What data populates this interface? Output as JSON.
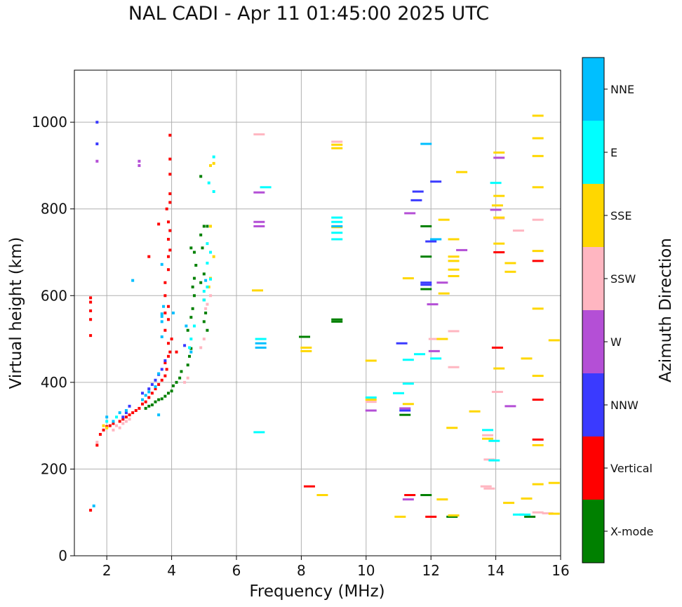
{
  "chart_data": {
    "type": "scatter",
    "title": "NAL CADI - Apr 11 01:45:00 2025 UTC",
    "xlabel": "Frequency (MHz)",
    "ylabel": "Virtual height (km)",
    "xlim": [
      1,
      16
    ],
    "ylim": [
      0,
      1120
    ],
    "xticks": [
      2,
      4,
      6,
      8,
      10,
      12,
      14,
      16
    ],
    "yticks": [
      0,
      200,
      400,
      600,
      800,
      1000
    ],
    "grid": true,
    "colorbar": {
      "label": "Azimuth Direction",
      "categories": [
        {
          "name": "X-mode",
          "color": "#008000"
        },
        {
          "name": "Vertical",
          "color": "#ff0000"
        },
        {
          "name": "NNW",
          "color": "#3a3aff"
        },
        {
          "name": "W",
          "color": "#b44fd6"
        },
        {
          "name": "SSW",
          "color": "#ffb6c1"
        },
        {
          "name": "SSE",
          "color": "#ffd700"
        },
        {
          "name": "E",
          "color": "#00ffff"
        },
        {
          "name": "NNE",
          "color": "#00bfff"
        }
      ]
    },
    "series": [
      {
        "name": "X-mode",
        "points": [
          [
            3.5,
            355
          ],
          [
            3.6,
            360
          ],
          [
            3.7,
            362
          ],
          [
            3.8,
            368
          ],
          [
            3.9,
            375
          ],
          [
            4.0,
            380
          ],
          [
            4.05,
            392
          ],
          [
            4.15,
            400
          ],
          [
            4.25,
            410
          ],
          [
            4.3,
            425
          ],
          [
            4.5,
            440
          ],
          [
            4.55,
            460
          ],
          [
            4.6,
            478
          ],
          [
            4.5,
            520
          ],
          [
            4.6,
            550
          ],
          [
            4.65,
            570
          ],
          [
            4.7,
            600
          ],
          [
            4.65,
            620
          ],
          [
            4.7,
            640
          ],
          [
            4.75,
            670
          ],
          [
            4.7,
            700
          ],
          [
            4.6,
            710
          ],
          [
            4.9,
            740
          ],
          [
            5.0,
            760
          ],
          [
            5.1,
            760
          ],
          [
            4.95,
            710
          ],
          [
            5.0,
            650
          ],
          [
            4.9,
            630
          ],
          [
            5.0,
            590
          ],
          [
            5.05,
            560
          ],
          [
            5.0,
            540
          ],
          [
            5.1,
            520
          ],
          [
            3.3,
            345
          ],
          [
            3.4,
            348
          ],
          [
            3.2,
            340
          ],
          [
            4.9,
            875
          ],
          [
            8.1,
            505
          ],
          [
            9.1,
            540
          ],
          [
            9.1,
            545
          ],
          [
            11.2,
            325
          ],
          [
            11.85,
            140
          ],
          [
            11.85,
            615
          ],
          [
            11.85,
            690
          ],
          [
            11.85,
            760
          ],
          [
            12.65,
            90
          ],
          [
            15.05,
            90
          ]
        ]
      },
      {
        "name": "Vertical",
        "points": [
          [
            1.5,
            105
          ],
          [
            1.5,
            508
          ],
          [
            1.5,
            545
          ],
          [
            1.5,
            565
          ],
          [
            1.5,
            585
          ],
          [
            1.5,
            595
          ],
          [
            1.7,
            255
          ],
          [
            1.8,
            280
          ],
          [
            1.9,
            290
          ],
          [
            2.0,
            298
          ],
          [
            2.1,
            300
          ],
          [
            2.2,
            305
          ],
          [
            2.4,
            310
          ],
          [
            2.5,
            315
          ],
          [
            2.6,
            320
          ],
          [
            2.7,
            325
          ],
          [
            2.8,
            330
          ],
          [
            2.9,
            335
          ],
          [
            3.0,
            340
          ],
          [
            3.1,
            350
          ],
          [
            3.2,
            355
          ],
          [
            3.3,
            365
          ],
          [
            3.4,
            375
          ],
          [
            3.5,
            385
          ],
          [
            3.6,
            395
          ],
          [
            3.7,
            405
          ],
          [
            3.8,
            415
          ],
          [
            3.85,
            430
          ],
          [
            3.8,
            445
          ],
          [
            3.9,
            460
          ],
          [
            3.95,
            470
          ],
          [
            3.9,
            490
          ],
          [
            4.0,
            500
          ],
          [
            3.8,
            520
          ],
          [
            3.9,
            545
          ],
          [
            3.8,
            560
          ],
          [
            3.9,
            575
          ],
          [
            3.8,
            600
          ],
          [
            3.8,
            630
          ],
          [
            3.9,
            660
          ],
          [
            3.9,
            690
          ],
          [
            3.95,
            705
          ],
          [
            3.9,
            730
          ],
          [
            3.95,
            750
          ],
          [
            3.9,
            770
          ],
          [
            3.85,
            800
          ],
          [
            3.95,
            815
          ],
          [
            3.95,
            835
          ],
          [
            3.95,
            880
          ],
          [
            3.95,
            915
          ],
          [
            3.95,
            970
          ],
          [
            3.6,
            765
          ],
          [
            3.3,
            690
          ],
          [
            4.15,
            470
          ],
          [
            8.25,
            160
          ],
          [
            11.35,
            140
          ],
          [
            12.0,
            90
          ],
          [
            14.05,
            480
          ],
          [
            14.1,
            700
          ],
          [
            15.3,
            680
          ],
          [
            15.3,
            360
          ],
          [
            15.3,
            268
          ]
        ]
      },
      {
        "name": "NNW",
        "points": [
          [
            1.7,
            950
          ],
          [
            1.7,
            1000
          ],
          [
            2.5,
            320
          ],
          [
            2.6,
            330
          ],
          [
            2.7,
            345
          ],
          [
            3.1,
            375
          ],
          [
            3.3,
            385
          ],
          [
            3.4,
            395
          ],
          [
            3.5,
            405
          ],
          [
            3.6,
            418
          ],
          [
            3.7,
            430
          ],
          [
            3.8,
            450
          ],
          [
            4.4,
            485
          ],
          [
            11.1,
            490
          ],
          [
            11.2,
            335
          ],
          [
            11.55,
            820
          ],
          [
            11.6,
            840
          ],
          [
            11.85,
            625
          ],
          [
            11.85,
            630
          ],
          [
            12.0,
            725
          ],
          [
            12.15,
            863
          ]
        ]
      },
      {
        "name": "W",
        "points": [
          [
            1.7,
            910
          ],
          [
            3.0,
            910
          ],
          [
            3.0,
            900
          ],
          [
            6.7,
            838
          ],
          [
            6.7,
            760
          ],
          [
            6.7,
            770
          ],
          [
            10.15,
            335
          ],
          [
            11.2,
            340
          ],
          [
            11.3,
            130
          ],
          [
            11.35,
            790
          ],
          [
            12.05,
            580
          ],
          [
            12.1,
            472
          ],
          [
            12.35,
            630
          ],
          [
            12.95,
            705
          ],
          [
            14.0,
            798
          ],
          [
            14.1,
            918
          ],
          [
            14.45,
            345
          ]
        ]
      },
      {
        "name": "SSW",
        "points": [
          [
            1.7,
            262
          ],
          [
            2.2,
            290
          ],
          [
            2.3,
            300
          ],
          [
            2.4,
            295
          ],
          [
            2.5,
            305
          ],
          [
            2.6,
            310
          ],
          [
            2.7,
            315
          ],
          [
            4.4,
            400
          ],
          [
            4.5,
            410
          ],
          [
            4.9,
            480
          ],
          [
            5.0,
            500
          ],
          [
            5.05,
            570
          ],
          [
            5.1,
            580
          ],
          [
            5.2,
            600
          ],
          [
            6.7,
            972
          ],
          [
            9.1,
            955
          ],
          [
            10.15,
            355
          ],
          [
            12.1,
            500
          ],
          [
            12.7,
            518
          ],
          [
            12.7,
            435
          ],
          [
            13.7,
            160
          ],
          [
            13.8,
            155
          ],
          [
            13.75,
            278
          ],
          [
            13.8,
            222
          ],
          [
            14.05,
            378
          ],
          [
            14.1,
            778
          ],
          [
            14.7,
            750
          ],
          [
            15.3,
            775
          ],
          [
            15.3,
            100
          ],
          [
            15.6,
            98
          ]
        ]
      },
      {
        "name": "SSE",
        "points": [
          [
            1.9,
            300
          ],
          [
            2.0,
            295
          ],
          [
            5.2,
            900
          ],
          [
            5.3,
            905
          ],
          [
            5.2,
            760
          ],
          [
            5.3,
            690
          ],
          [
            5.2,
            640
          ],
          [
            5.15,
            620
          ],
          [
            6.65,
            612
          ],
          [
            8.15,
            472
          ],
          [
            8.15,
            480
          ],
          [
            8.65,
            140
          ],
          [
            9.1,
            948
          ],
          [
            9.1,
            940
          ],
          [
            9.1,
            758
          ],
          [
            10.15,
            450
          ],
          [
            10.15,
            360
          ],
          [
            11.05,
            90
          ],
          [
            11.3,
            350
          ],
          [
            11.3,
            640
          ],
          [
            12.35,
            130
          ],
          [
            12.35,
            500
          ],
          [
            12.4,
            605
          ],
          [
            12.4,
            775
          ],
          [
            12.65,
            295
          ],
          [
            12.7,
            93
          ],
          [
            12.7,
            645
          ],
          [
            12.7,
            660
          ],
          [
            12.7,
            680
          ],
          [
            12.7,
            690
          ],
          [
            12.7,
            730
          ],
          [
            12.95,
            885
          ],
          [
            13.35,
            333
          ],
          [
            13.75,
            270
          ],
          [
            14.1,
            930
          ],
          [
            14.1,
            830
          ],
          [
            14.05,
            808
          ],
          [
            14.1,
            780
          ],
          [
            14.1,
            720
          ],
          [
            14.1,
            432
          ],
          [
            14.45,
            655
          ],
          [
            14.45,
            675
          ],
          [
            14.4,
            122
          ],
          [
            14.95,
            132
          ],
          [
            14.95,
            455
          ],
          [
            15.3,
            1015
          ],
          [
            15.3,
            963
          ],
          [
            15.3,
            922
          ],
          [
            15.3,
            850
          ],
          [
            15.3,
            703
          ],
          [
            15.3,
            570
          ],
          [
            15.3,
            415
          ],
          [
            15.3,
            255
          ],
          [
            15.3,
            165
          ],
          [
            15.8,
            168
          ],
          [
            15.8,
            497
          ],
          [
            15.8,
            97
          ]
        ]
      },
      {
        "name": "E",
        "points": [
          [
            2.0,
            310
          ],
          [
            2.3,
            320
          ],
          [
            4.55,
            480
          ],
          [
            4.6,
            500
          ],
          [
            4.7,
            530
          ],
          [
            5.0,
            590
          ],
          [
            5.0,
            610
          ],
          [
            5.1,
            620
          ],
          [
            5.2,
            638
          ],
          [
            5.1,
            675
          ],
          [
            5.2,
            700
          ],
          [
            5.1,
            720
          ],
          [
            5.3,
            840
          ],
          [
            5.15,
            860
          ],
          [
            5.3,
            920
          ],
          [
            6.7,
            285
          ],
          [
            6.75,
            500
          ],
          [
            6.9,
            850
          ],
          [
            9.1,
            730
          ],
          [
            9.1,
            745
          ],
          [
            9.1,
            770
          ],
          [
            9.1,
            780
          ],
          [
            10.15,
            365
          ],
          [
            11.0,
            375
          ],
          [
            11.3,
            397
          ],
          [
            11.3,
            452
          ],
          [
            11.65,
            465
          ],
          [
            12.15,
            455
          ],
          [
            13.75,
            290
          ],
          [
            13.95,
            220
          ],
          [
            13.95,
            265
          ],
          [
            14.0,
            860
          ],
          [
            14.7,
            95
          ],
          [
            14.9,
            95
          ]
        ]
      },
      {
        "name": "NNE",
        "points": [
          [
            1.6,
            115
          ],
          [
            2.0,
            320
          ],
          [
            2.2,
            310
          ],
          [
            2.4,
            330
          ],
          [
            2.6,
            335
          ],
          [
            2.8,
            635
          ],
          [
            3.1,
            360
          ],
          [
            3.2,
            370
          ],
          [
            3.3,
            378
          ],
          [
            3.5,
            390
          ],
          [
            3.6,
            325
          ],
          [
            3.6,
            420
          ],
          [
            3.7,
            505
          ],
          [
            3.7,
            540
          ],
          [
            3.7,
            552
          ],
          [
            3.7,
            558
          ],
          [
            3.75,
            575
          ],
          [
            3.7,
            672
          ],
          [
            4.05,
            560
          ],
          [
            4.45,
            530
          ],
          [
            4.6,
            470
          ],
          [
            5.05,
            635
          ],
          [
            6.75,
            480
          ],
          [
            6.75,
            490
          ],
          [
            9.1,
            760
          ],
          [
            11.85,
            950
          ],
          [
            12.15,
            730
          ],
          [
            12.15,
            730
          ]
        ]
      }
    ]
  }
}
